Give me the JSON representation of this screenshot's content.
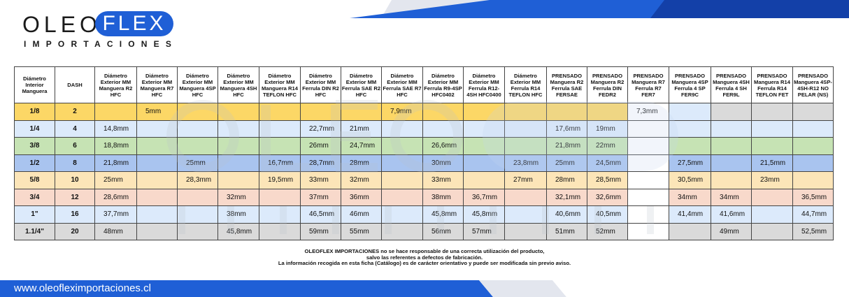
{
  "colors": {
    "brand_blue": "#1f5fd6",
    "dark_blue": "#0d2a6b",
    "row_yellow": "#fcd766",
    "row_green": "#c6e3b4",
    "row_blue": "#a9c4ef",
    "row_peach": "#fce5b8",
    "row_pink": "#f8d9cb",
    "row_light_blue": "#dceafb",
    "row_gray": "#dadada"
  },
  "logo": {
    "oleo": "OLEO",
    "flex": "FLEX",
    "sub": "IMPORTACIONES"
  },
  "headers": [
    "Diámetro Interior Manguera",
    "DASH",
    "Diámetro Exterior MM Manguera R2 HFC",
    "Diámetro Exterior MM Manguera R7 HFC",
    "Diámetro Exterior MM Manguera 4SP HFC",
    "Diámetro Exterior MM Manguera 4SH HFC",
    "Diámetro Exterior MM Manguera R14 TEFLON HFC",
    "Diámetro Exterior MM Ferrula DIN R2 HFC",
    "Diámetro Exterior MM Ferrula SAE R2 HFC",
    "Diámetro Exterior MM Ferrula SAE R7 HFC",
    "Diámetro Exterior MM Ferrula R9-4SP HFC0402",
    "Diámetro Exterior MM Ferrula R12-4SH HFC0400",
    "Diámetro Exterior MM Ferrula R14 TEFLON HFC",
    "PRENSADO Manguera R2 Ferrula SAE FERSAE",
    "PRENSADO Manguera R2 Ferrula DIN FEDR2",
    "PRENSADO Manguera R7 Ferrula R7 FER7",
    "PRENSADO Manguera 4SP Ferrula 4 SP FER9C",
    "PRENSADO Manguera 4SH Ferrula 4 SH FER9L",
    "PRENSADO Manguera R14 Ferrula R14 TEFLON FET",
    "PRENSADO Manguera 4SP-4SH-R12 NO PELAR (NS)"
  ],
  "rows": [
    [
      "1/8",
      "2",
      "",
      "5mm",
      "",
      "",
      "",
      "",
      "",
      "7,9mm",
      "",
      "",
      "",
      "",
      "",
      "7,3mm",
      "",
      "",
      "",
      ""
    ],
    [
      "1/4",
      "4",
      "14,8mm",
      "",
      "",
      "",
      "",
      "22,7mm",
      "21mm",
      "",
      "",
      "",
      "",
      "17,6mm",
      "19mm",
      "",
      "",
      "",
      "",
      ""
    ],
    [
      "3/8",
      "6",
      "18,8mm",
      "",
      "",
      "",
      "",
      "26mm",
      "24,7mm",
      "",
      "26,6mm",
      "",
      "",
      "21,8mm",
      "22mm",
      "",
      "",
      "",
      "",
      ""
    ],
    [
      "1/2",
      "8",
      "21,8mm",
      "",
      "25mm",
      "",
      "16,7mm",
      "28,7mm",
      "28mm",
      "",
      "30mm",
      "",
      "23,8mm",
      "25mm",
      "24,5mm",
      "",
      "27,5mm",
      "",
      "21,5mm",
      ""
    ],
    [
      "5/8",
      "10",
      "25mm",
      "",
      "28,3mm",
      "",
      "19,5mm",
      "33mm",
      "32mm",
      "",
      "33mm",
      "",
      "27mm",
      "28mm",
      "28,5mm",
      "",
      "30,5mm",
      "",
      "23mm",
      ""
    ],
    [
      "3/4",
      "12",
      "28,6mm",
      "",
      "",
      "32mm",
      "",
      "37mm",
      "36mm",
      "",
      "38mm",
      "36,7mm",
      "",
      "32,1mm",
      "32,6mm",
      "",
      "34mm",
      "34mm",
      "",
      "36,5mm"
    ],
    [
      "1\"",
      "16",
      "37,7mm",
      "",
      "",
      "38mm",
      "",
      "46,5mm",
      "46mm",
      "",
      "45,8mm",
      "45,8mm",
      "",
      "40,6mm",
      "40,5mm",
      "",
      "41,4mm",
      "41,6mm",
      "",
      "44,7mm"
    ],
    [
      "1.1/4\"",
      "20",
      "48mm",
      "",
      "",
      "45,8mm",
      "",
      "59mm",
      "55mm",
      "",
      "56mm",
      "57mm",
      "",
      "51mm",
      "52mm",
      "",
      "",
      "49mm",
      "",
      "52,5mm"
    ]
  ],
  "disclaimer": {
    "line1": "OLEOFLEX IMPORTACIONES no se hace responsable de una correcta utilización del producto,",
    "line2": "salvo las referentes a defectos de fabricación.",
    "line3": "La información recogida en esta ficha (Catálogo) es de carácter orientativo y puede ser modificada sin previo aviso."
  },
  "footer": {
    "url": "www.oleofleximportaciones.cl"
  }
}
